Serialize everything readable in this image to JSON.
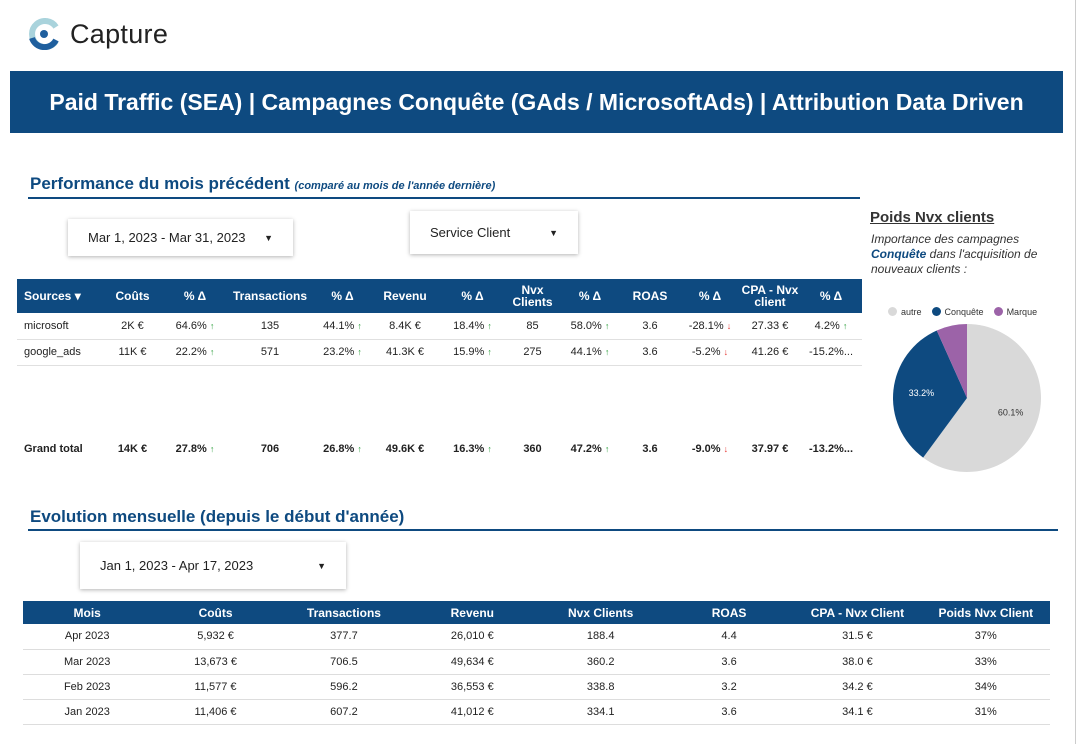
{
  "app": {
    "logo_text": "Capture"
  },
  "banner": {
    "title": "Paid Traffic (SEA) | Campagnes Conquête (GAds / MicrosoftAds) | Attribution Data Driven"
  },
  "section1": {
    "title": "Performance du mois précédent",
    "subtitle": "(comparé au mois de l'année dernière)",
    "date_filter": "Mar 1, 2023 - Mar 31, 2023",
    "service_filter": "Service Client",
    "table": {
      "headers": [
        "Sources ▾",
        "Coûts",
        "% Δ",
        "Transactions",
        "% Δ",
        "Revenu",
        "% Δ",
        "Nvx Clients",
        "% Δ",
        "ROAS",
        "% Δ",
        "CPA - Nvx client",
        "% Δ"
      ],
      "rows": [
        [
          "microsoft",
          "2K €",
          "64.6%",
          "135",
          "44.1%",
          "8.4K €",
          "18.4%",
          "85",
          "58.0%",
          "3.6",
          "-28.1%",
          "27.33 €",
          "4.2%"
        ],
        [
          "google_ads",
          "11K €",
          "22.2%",
          "571",
          "23.2%",
          "41.3K €",
          "15.9%",
          "275",
          "44.1%",
          "3.6",
          "-5.2%",
          "41.26 €",
          "-15.2%..."
        ]
      ],
      "total": [
        "Grand total",
        "14K €",
        "27.8%",
        "706",
        "26.8%",
        "49.6K €",
        "16.3%",
        "360",
        "47.2%",
        "3.6",
        "-9.0%",
        "37.97 €",
        "-13.2%..."
      ],
      "arrows": {
        "up": "↑",
        "down": "↓"
      }
    }
  },
  "pie": {
    "title": "Poids Nvx clients",
    "subtitle_pre": "Importance des campagnes ",
    "subtitle_bold": "Conquête",
    "subtitle_post": " dans l'acquisition de nouveaux clients :",
    "chart_data": {
      "type": "pie",
      "slices": [
        {
          "label": "autre",
          "value": 60.1,
          "color": "#d9d9d9",
          "show_label": "60.1%"
        },
        {
          "label": "Conquête",
          "value": 33.2,
          "color": "#0e4a80",
          "show_label": "33.2%"
        },
        {
          "label": "Marque",
          "value": 6.7,
          "color": "#9c63a8",
          "show_label": ""
        }
      ]
    }
  },
  "section2": {
    "title": "Evolution mensuelle (depuis le début d'année)",
    "date_filter": "Jan 1, 2023 - Apr 17, 2023",
    "table": {
      "headers": [
        "Mois",
        "Coûts",
        "Transactions",
        "Revenu",
        "Nvx Clients",
        "ROAS",
        "CPA - Nvx Client",
        "Poids Nvx Client"
      ],
      "rows": [
        [
          "Apr 2023",
          "5,932 €",
          "377.7",
          "26,010 €",
          "188.4",
          "4.4",
          "31.5 €",
          "37%"
        ],
        [
          "Mar 2023",
          "13,673 €",
          "706.5",
          "49,634 €",
          "360.2",
          "3.6",
          "38.0 €",
          "33%"
        ],
        [
          "Feb 2023",
          "11,577 €",
          "596.2",
          "36,553 €",
          "338.8",
          "3.2",
          "34.2 €",
          "34%"
        ],
        [
          "Jan 2023",
          "11,406 €",
          "607.2",
          "41,012 €",
          "334.1",
          "3.6",
          "34.1 €",
          "31%"
        ]
      ]
    }
  }
}
